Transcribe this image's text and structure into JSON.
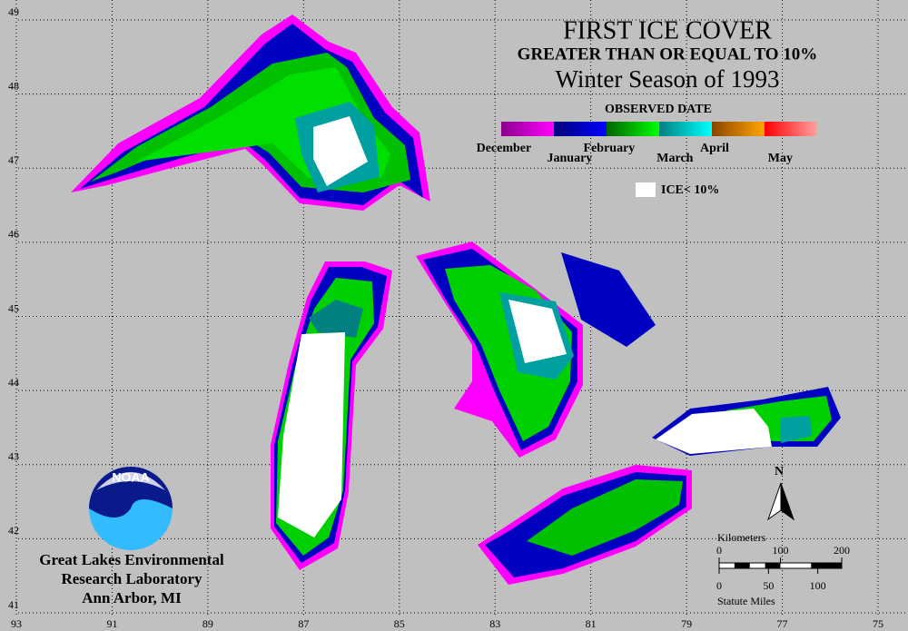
{
  "title": "FIRST ICE COVER",
  "subtitle": "GREATER THAN OR EQUAL TO 10%",
  "season": "Winter Season of 1993",
  "legend": {
    "title": "OBSERVED DATE",
    "months": [
      {
        "label": "December",
        "colors": [
          "#8b008b",
          "#ff00ff"
        ]
      },
      {
        "label": "January",
        "colors": [
          "#00007a",
          "#0000ff"
        ]
      },
      {
        "label": "February",
        "colors": [
          "#006400",
          "#00ff00"
        ]
      },
      {
        "label": "March",
        "colors": [
          "#008080",
          "#00ffff"
        ]
      },
      {
        "label": "April",
        "colors": [
          "#8b4500",
          "#ffa500"
        ]
      },
      {
        "label": "May",
        "colors": [
          "#ff0000",
          "#ffa0a0"
        ]
      }
    ],
    "ice_label": "ICE< 10%"
  },
  "graticule": {
    "longitudes": [
      93,
      91,
      89,
      87,
      85,
      83,
      81,
      79,
      77,
      75
    ],
    "latitudes": [
      49,
      48,
      47,
      46,
      45,
      44,
      43,
      42,
      41
    ]
  },
  "north": "N",
  "scale": {
    "km_label": "Kilometers",
    "km_ticks": [
      0,
      100,
      200
    ],
    "mile_ticks": [
      0,
      50,
      100
    ],
    "mile_label": "Statute Miles"
  },
  "logo": "NOAA",
  "credit": [
    "Great Lakes Environmental",
    "Research Laboratory",
    "Ann Arbor, MI"
  ]
}
